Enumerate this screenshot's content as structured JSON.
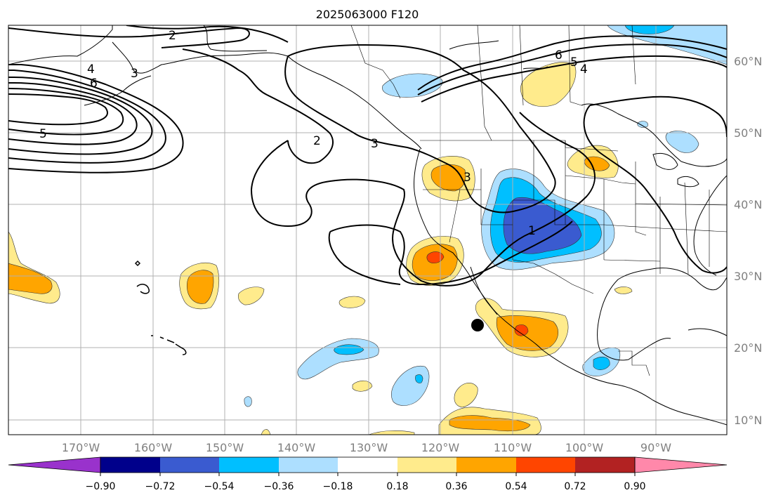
{
  "map": {
    "title": "2025063000 F120",
    "lon_labels": [
      "170°W",
      "160°W",
      "150°W",
      "140°W",
      "130°W",
      "120°W",
      "110°W",
      "100°W",
      "90°W"
    ],
    "lat_labels": [
      "60°N",
      "50°N",
      "40°N",
      "30°N",
      "20°N",
      "10°N"
    ],
    "contour_labels": [
      "2",
      "3",
      "4",
      "6",
      "5",
      "2",
      "3",
      "6",
      "5",
      "4",
      "3",
      "1"
    ],
    "marker": {
      "lon": -114.7,
      "lat": 23.3
    },
    "colors": {
      "neg_090": "#9932CC",
      "neg_072": "#00008B",
      "neg_054": "#3A5BD0",
      "neg_036": "#00BFFF",
      "neg_018": "#ADDFFF",
      "pos_018": "#FFEB8C",
      "pos_036": "#FFA500",
      "pos_054": "#FF4500",
      "pos_072": "#B22222",
      "pos_090": "#FF88AA"
    }
  },
  "colorbar": {
    "ticks": [
      "−0.90",
      "−0.72",
      "−0.54",
      "−0.36",
      "−0.18",
      "0.18",
      "0.36",
      "0.54",
      "0.72",
      "0.90"
    ]
  }
}
